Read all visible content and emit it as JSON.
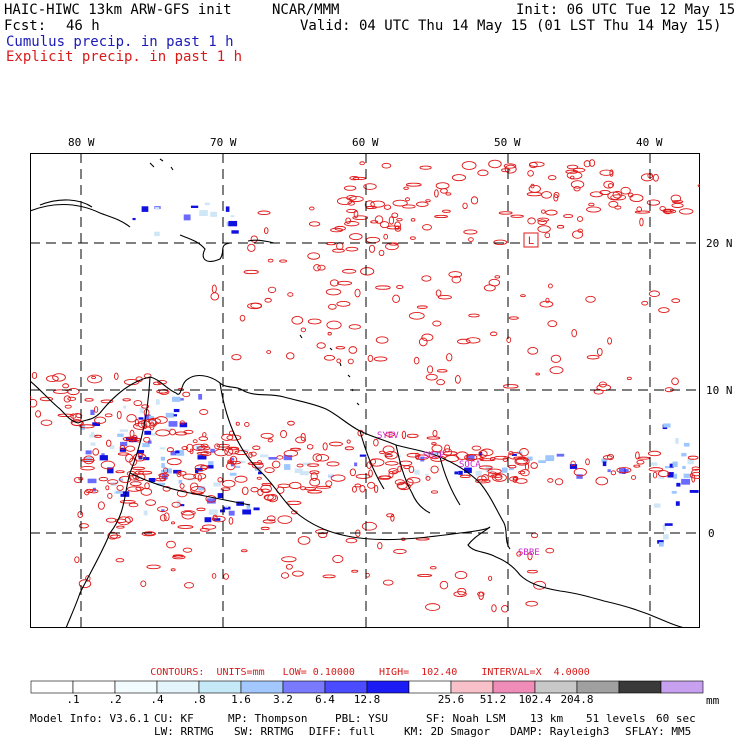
{
  "header": {
    "model": "HAIC-HIWC 13km ARW-GFS init",
    "center": "NCAR/MMM",
    "init": "Init: 06 UTC Tue 12 May 15",
    "fcst_label": "Fcst:",
    "fcst_value": "46 h",
    "valid": "Valid: 04 UTC Thu 14 May 15 (01 LST Thu 14 May 15)",
    "cumulus": "Cumulus precip. in past 1 h",
    "explicit": "Explicit precip. in past 1 h"
  },
  "map": {
    "lon_labels": [
      "80 W",
      "70 W",
      "60 W",
      "50 W",
      "40 W"
    ],
    "lat_labels": [
      "20 N",
      "10 N",
      "0"
    ],
    "stations": [
      "SYEV",
      "SMJP",
      "SOCA",
      "SBBE"
    ],
    "station_color": "#cc22cc",
    "explicit_color": "#e01818",
    "cumulus_colors": [
      "#cfe6f7",
      "#9fc7ff",
      "#6b6bff",
      "#1010e0"
    ]
  },
  "contours": {
    "units_label": "CONTOURS:  UNITS=mm",
    "low": "LOW= 0.10000",
    "high": "HIGH=  102.40",
    "interval": "INTERVAL=X  4.0000"
  },
  "legend": {
    "colors": [
      "#ffffff",
      "#ffffff",
      "#f2fbfd",
      "#e4f6fb",
      "#c6e9f8",
      "#a2c8ff",
      "#7a7aff",
      "#4b4bff",
      "#1b1bf5",
      "#ffffff",
      "#f8c0c8",
      "#f08cb8",
      "#c8c8c8",
      "#a0a0a0",
      "#3a3a3a",
      "#c8a0f0"
    ],
    "ticks": [
      ".1",
      ".2",
      ".4",
      ".8",
      "1.6",
      "3.2",
      "6.4",
      "12.8",
      "25.6",
      "51.2",
      "102.4",
      "204.8"
    ],
    "unit": "mm"
  },
  "model_info": {
    "line1": [
      "Model Info: V3.6.1",
      "CU: KF",
      "MP: Thompson",
      "PBL: YSU",
      "SF: Noah LSM",
      "13 km",
      "51 levels",
      "60 sec"
    ],
    "line2": [
      "LW: RRTMG",
      "SW: RRTMG",
      "DIFF: full",
      "KM: 2D Smagor",
      "DAMP: Rayleigh3",
      "SFLAY: MM5"
    ]
  }
}
